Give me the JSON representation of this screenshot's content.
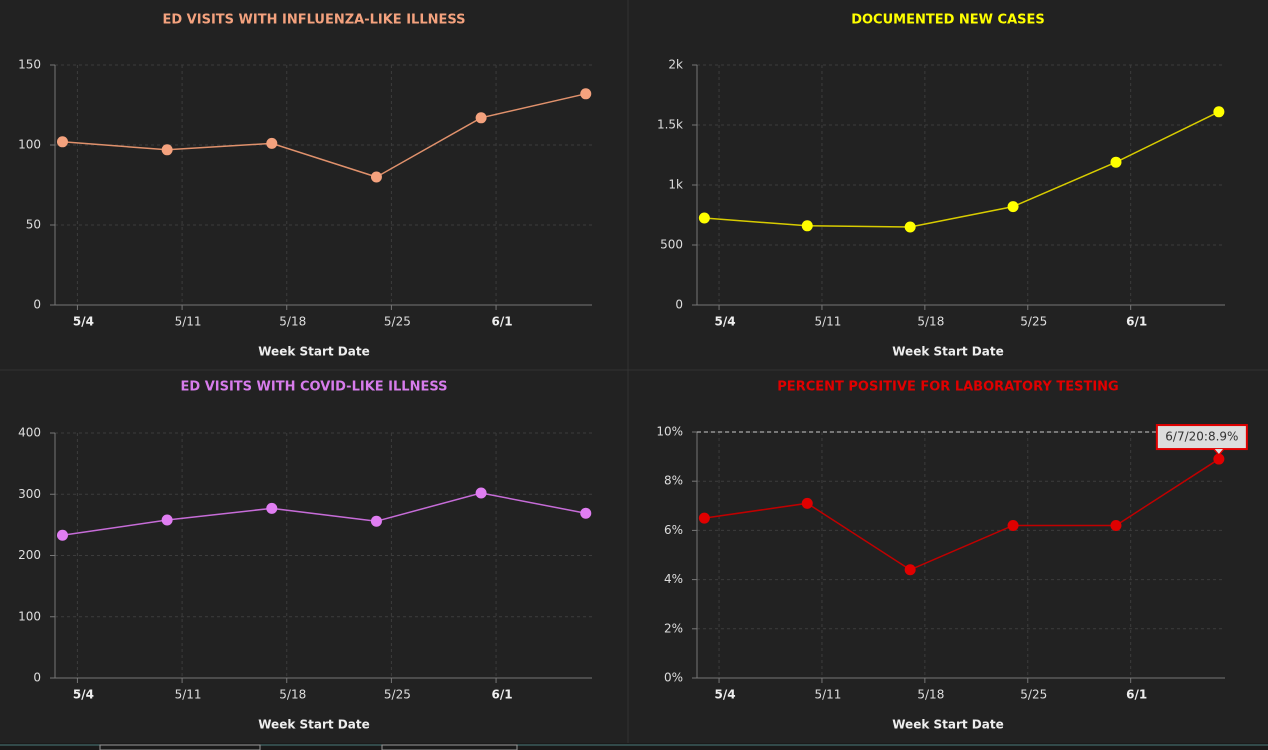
{
  "chart_data": [
    {
      "type": "line",
      "title": "ED VISITS WITH INFLUENZA-LIKE ILLNESS",
      "title_color": "#f4a27e",
      "x_label": "Week Start Date",
      "x": [
        "2020-05-03",
        "2020-05-10",
        "2020-05-17",
        "2020-05-24",
        "2020-05-31",
        "2020-06-07"
      ],
      "values": [
        102,
        97,
        101,
        80,
        117,
        132
      ],
      "color": "#f4a27e",
      "line_color": "#e0916c",
      "xlim": [
        "2020-05-02T12:00",
        "2020-06-07T10:00"
      ],
      "xticks": [
        {
          "value": "2020-05-04",
          "label": "5/4"
        },
        {
          "value": "2020-05-11",
          "label": "5/11"
        },
        {
          "value": "2020-05-18",
          "label": "5/18"
        },
        {
          "value": "2020-05-25",
          "label": "5/25"
        },
        {
          "value": "2020-06-01",
          "label": "6/1"
        }
      ],
      "ylim": [
        0,
        150
      ],
      "yticks": [
        0,
        50,
        100,
        150
      ],
      "grid": true
    },
    {
      "type": "line",
      "title": "DOCUMENTED NEW CASES",
      "title_color": "#ffff00",
      "x_label": "Week Start Date",
      "x": [
        "2020-05-03",
        "2020-05-10",
        "2020-05-17",
        "2020-05-24",
        "2020-05-31",
        "2020-06-07"
      ],
      "values": [
        725,
        660,
        650,
        820,
        1190,
        1610
      ],
      "color": "#ffff00",
      "line_color": "#d8cc00",
      "xlim": [
        "2020-05-02T12:00",
        "2020-06-07T10:00"
      ],
      "xticks": [
        {
          "value": "2020-05-04",
          "label": "5/4"
        },
        {
          "value": "2020-05-11",
          "label": "5/11"
        },
        {
          "value": "2020-05-18",
          "label": "5/18"
        },
        {
          "value": "2020-05-25",
          "label": "5/25"
        },
        {
          "value": "2020-06-01",
          "label": "6/1"
        }
      ],
      "ylim": [
        0,
        2000
      ],
      "yticks": [
        0,
        500,
        {
          "value": 1000,
          "label": "1k"
        },
        {
          "value": 1500,
          "label": "1.5k"
        },
        {
          "value": 2000,
          "label": "2k"
        }
      ],
      "grid": true
    },
    {
      "type": "line",
      "title": "ED VISITS WITH COVID-LIKE ILLNESS",
      "title_color": "#d77cec",
      "x_label": "Week Start Date",
      "x": [
        "2020-05-03",
        "2020-05-10",
        "2020-05-17",
        "2020-05-24",
        "2020-05-31",
        "2020-06-07"
      ],
      "values": [
        233,
        258,
        277,
        256,
        302,
        269
      ],
      "color": "#e07ef2",
      "line_color": "#c66cd8",
      "xlim": [
        "2020-05-02T12:00",
        "2020-06-07T10:00"
      ],
      "xticks": [
        {
          "value": "2020-05-04",
          "label": "5/4"
        },
        {
          "value": "2020-05-11",
          "label": "5/11"
        },
        {
          "value": "2020-05-18",
          "label": "5/18"
        },
        {
          "value": "2020-05-25",
          "label": "5/25"
        },
        {
          "value": "2020-06-01",
          "label": "6/1"
        }
      ],
      "ylim": [
        0,
        400
      ],
      "yticks": [
        0,
        100,
        200,
        300,
        400
      ],
      "grid": true
    },
    {
      "type": "line",
      "title": "PERCENT POSITIVE FOR LABORATORY TESTING",
      "title_color": "#e00000",
      "x_label": "Week Start Date",
      "x": [
        "2020-05-03",
        "2020-05-10",
        "2020-05-17",
        "2020-05-24",
        "2020-05-31",
        "2020-06-07"
      ],
      "values": [
        6.5,
        7.1,
        4.4,
        6.2,
        6.2,
        8.9
      ],
      "color": "#e00000",
      "line_color": "#c00000",
      "xlim": [
        "2020-05-02T12:00",
        "2020-06-07T10:00"
      ],
      "xticks": [
        {
          "value": "2020-05-04",
          "label": "5/4"
        },
        {
          "value": "2020-05-11",
          "label": "5/11"
        },
        {
          "value": "2020-05-18",
          "label": "5/18"
        },
        {
          "value": "2020-05-25",
          "label": "5/25"
        },
        {
          "value": "2020-06-01",
          "label": "6/1"
        }
      ],
      "ylim": [
        0,
        10
      ],
      "yticks": [
        {
          "value": 0,
          "label": "0%"
        },
        {
          "value": 2,
          "label": "2%"
        },
        {
          "value": 4,
          "label": "4%"
        },
        {
          "value": 6,
          "label": "6%"
        },
        {
          "value": 8,
          "label": "8%"
        },
        {
          "value": 10,
          "label": "10%"
        }
      ],
      "grid": true,
      "reference_line": 10,
      "annotation": "6/7/20:8.9%"
    }
  ]
}
